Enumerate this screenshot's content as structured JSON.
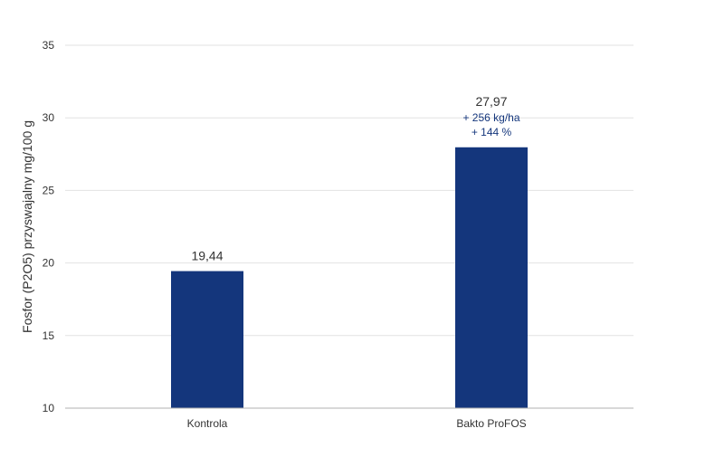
{
  "chart_data": {
    "type": "bar",
    "categories": [
      "Kontrola",
      "Bakto ProFOS"
    ],
    "values": [
      19.44,
      27.97
    ],
    "value_labels": [
      "19,44",
      "27,97"
    ],
    "annotations": [
      {
        "category": "Bakto ProFOS",
        "lines": [
          "+ 256 kg/ha",
          "+ 144 %"
        ]
      }
    ],
    "title": "",
    "xlabel": "",
    "ylabel": "Fosfor (P2O5) przyswajalny mg/100 g",
    "ylim": [
      10,
      35
    ],
    "yticks": [
      10,
      15,
      20,
      25,
      30,
      35
    ],
    "grid": true,
    "colors": {
      "bar": "#14367c",
      "grid": "#e2e2e2",
      "axis": "#b0b0b0",
      "text": "#333333",
      "annotation": "#14367c"
    }
  }
}
